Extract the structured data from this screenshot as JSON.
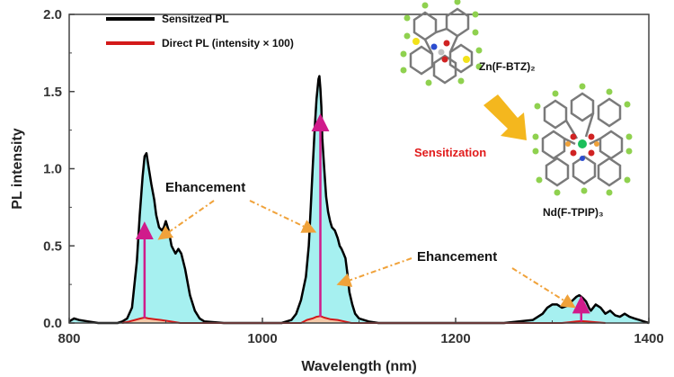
{
  "chart_data": {
    "type": "line",
    "xlabel": "Wavelength (nm)",
    "ylabel": "PL intensity",
    "xlim": [
      800,
      1400
    ],
    "ylim": [
      0,
      2.0
    ],
    "x_ticks": [
      "800",
      "1000",
      "1200",
      "1400"
    ],
    "y_ticks": [
      "0.0",
      "0.5",
      "1.0",
      "1.5",
      "2.0"
    ],
    "legend_position": "top-left",
    "series": [
      {
        "name": "Sensitzed PL",
        "color": "#000000",
        "fill": "#a6f0f0",
        "x": [
          800,
          805,
          810,
          820,
          830,
          840,
          850,
          855,
          860,
          865,
          870,
          873,
          876,
          878,
          880,
          882,
          885,
          888,
          890,
          893,
          896,
          898,
          900,
          903,
          906,
          910,
          913,
          916,
          920,
          925,
          930,
          935,
          940,
          960,
          980,
          1000,
          1020,
          1030,
          1035,
          1040,
          1045,
          1048,
          1050,
          1052,
          1054,
          1056,
          1058,
          1059,
          1060,
          1061,
          1062,
          1064,
          1066,
          1068,
          1070,
          1072,
          1075,
          1078,
          1080,
          1082,
          1084,
          1086,
          1088,
          1090,
          1093,
          1096,
          1100,
          1110,
          1120,
          1150,
          1200,
          1250,
          1280,
          1290,
          1295,
          1300,
          1305,
          1310,
          1315,
          1320,
          1325,
          1328,
          1330,
          1332,
          1335,
          1338,
          1340,
          1345,
          1350,
          1355,
          1360,
          1365,
          1370,
          1375,
          1380,
          1385,
          1390,
          1395,
          1400
        ],
        "y": [
          0.01,
          0.03,
          0.02,
          0.01,
          0.0,
          0.0,
          0.0,
          0.01,
          0.03,
          0.1,
          0.4,
          0.7,
          0.95,
          1.08,
          1.1,
          1.02,
          0.9,
          0.8,
          0.7,
          0.62,
          0.6,
          0.62,
          0.66,
          0.6,
          0.5,
          0.45,
          0.48,
          0.45,
          0.35,
          0.18,
          0.08,
          0.03,
          0.01,
          0.0,
          0.0,
          0.0,
          0.0,
          0.02,
          0.06,
          0.15,
          0.3,
          0.5,
          0.75,
          1.0,
          1.25,
          1.45,
          1.58,
          1.6,
          1.52,
          1.4,
          1.2,
          1.0,
          0.82,
          0.72,
          0.66,
          0.62,
          0.6,
          0.55,
          0.5,
          0.48,
          0.45,
          0.42,
          0.32,
          0.2,
          0.12,
          0.06,
          0.03,
          0.01,
          0.0,
          0.0,
          0.0,
          0.0,
          0.02,
          0.06,
          0.1,
          0.12,
          0.12,
          0.1,
          0.11,
          0.14,
          0.17,
          0.18,
          0.17,
          0.16,
          0.14,
          0.1,
          0.08,
          0.12,
          0.1,
          0.06,
          0.08,
          0.05,
          0.04,
          0.06,
          0.04,
          0.03,
          0.02,
          0.01,
          0.0
        ]
      },
      {
        "name": "Direct PL (intensity × 100)",
        "color": "#d31919",
        "fill": "#f4c9a8",
        "x": [
          855,
          862,
          868,
          874,
          878,
          882,
          888,
          895,
          905,
          915,
          1040,
          1046,
          1052,
          1056,
          1060,
          1064,
          1070,
          1078,
          1085,
          1092,
          1310,
          1318,
          1325,
          1330,
          1336,
          1345,
          1355
        ],
        "y": [
          0.0,
          0.01,
          0.02,
          0.03,
          0.035,
          0.03,
          0.025,
          0.02,
          0.01,
          0.0,
          0.0,
          0.02,
          0.03,
          0.04,
          0.045,
          0.035,
          0.025,
          0.02,
          0.01,
          0.0,
          0.0,
          0.005,
          0.01,
          0.012,
          0.01,
          0.005,
          0.0
        ]
      }
    ],
    "enhancement_arrows": [
      {
        "x": 878,
        "from_y": 0.03,
        "to_y": 0.6
      },
      {
        "x": 1060,
        "from_y": 0.04,
        "to_y": 1.3
      },
      {
        "x": 1330,
        "from_y": 0.01,
        "to_y": 0.12
      }
    ],
    "annotations": [
      {
        "text": "Ehancement"
      },
      {
        "text": "Ehancement"
      }
    ],
    "inset": {
      "molecule_1": "Zn(F-BTZ)₂",
      "molecule_2": "Nd(F-TPIP)₃",
      "process_label": "Sensitization",
      "arrow_color": "#f4b71e"
    }
  }
}
